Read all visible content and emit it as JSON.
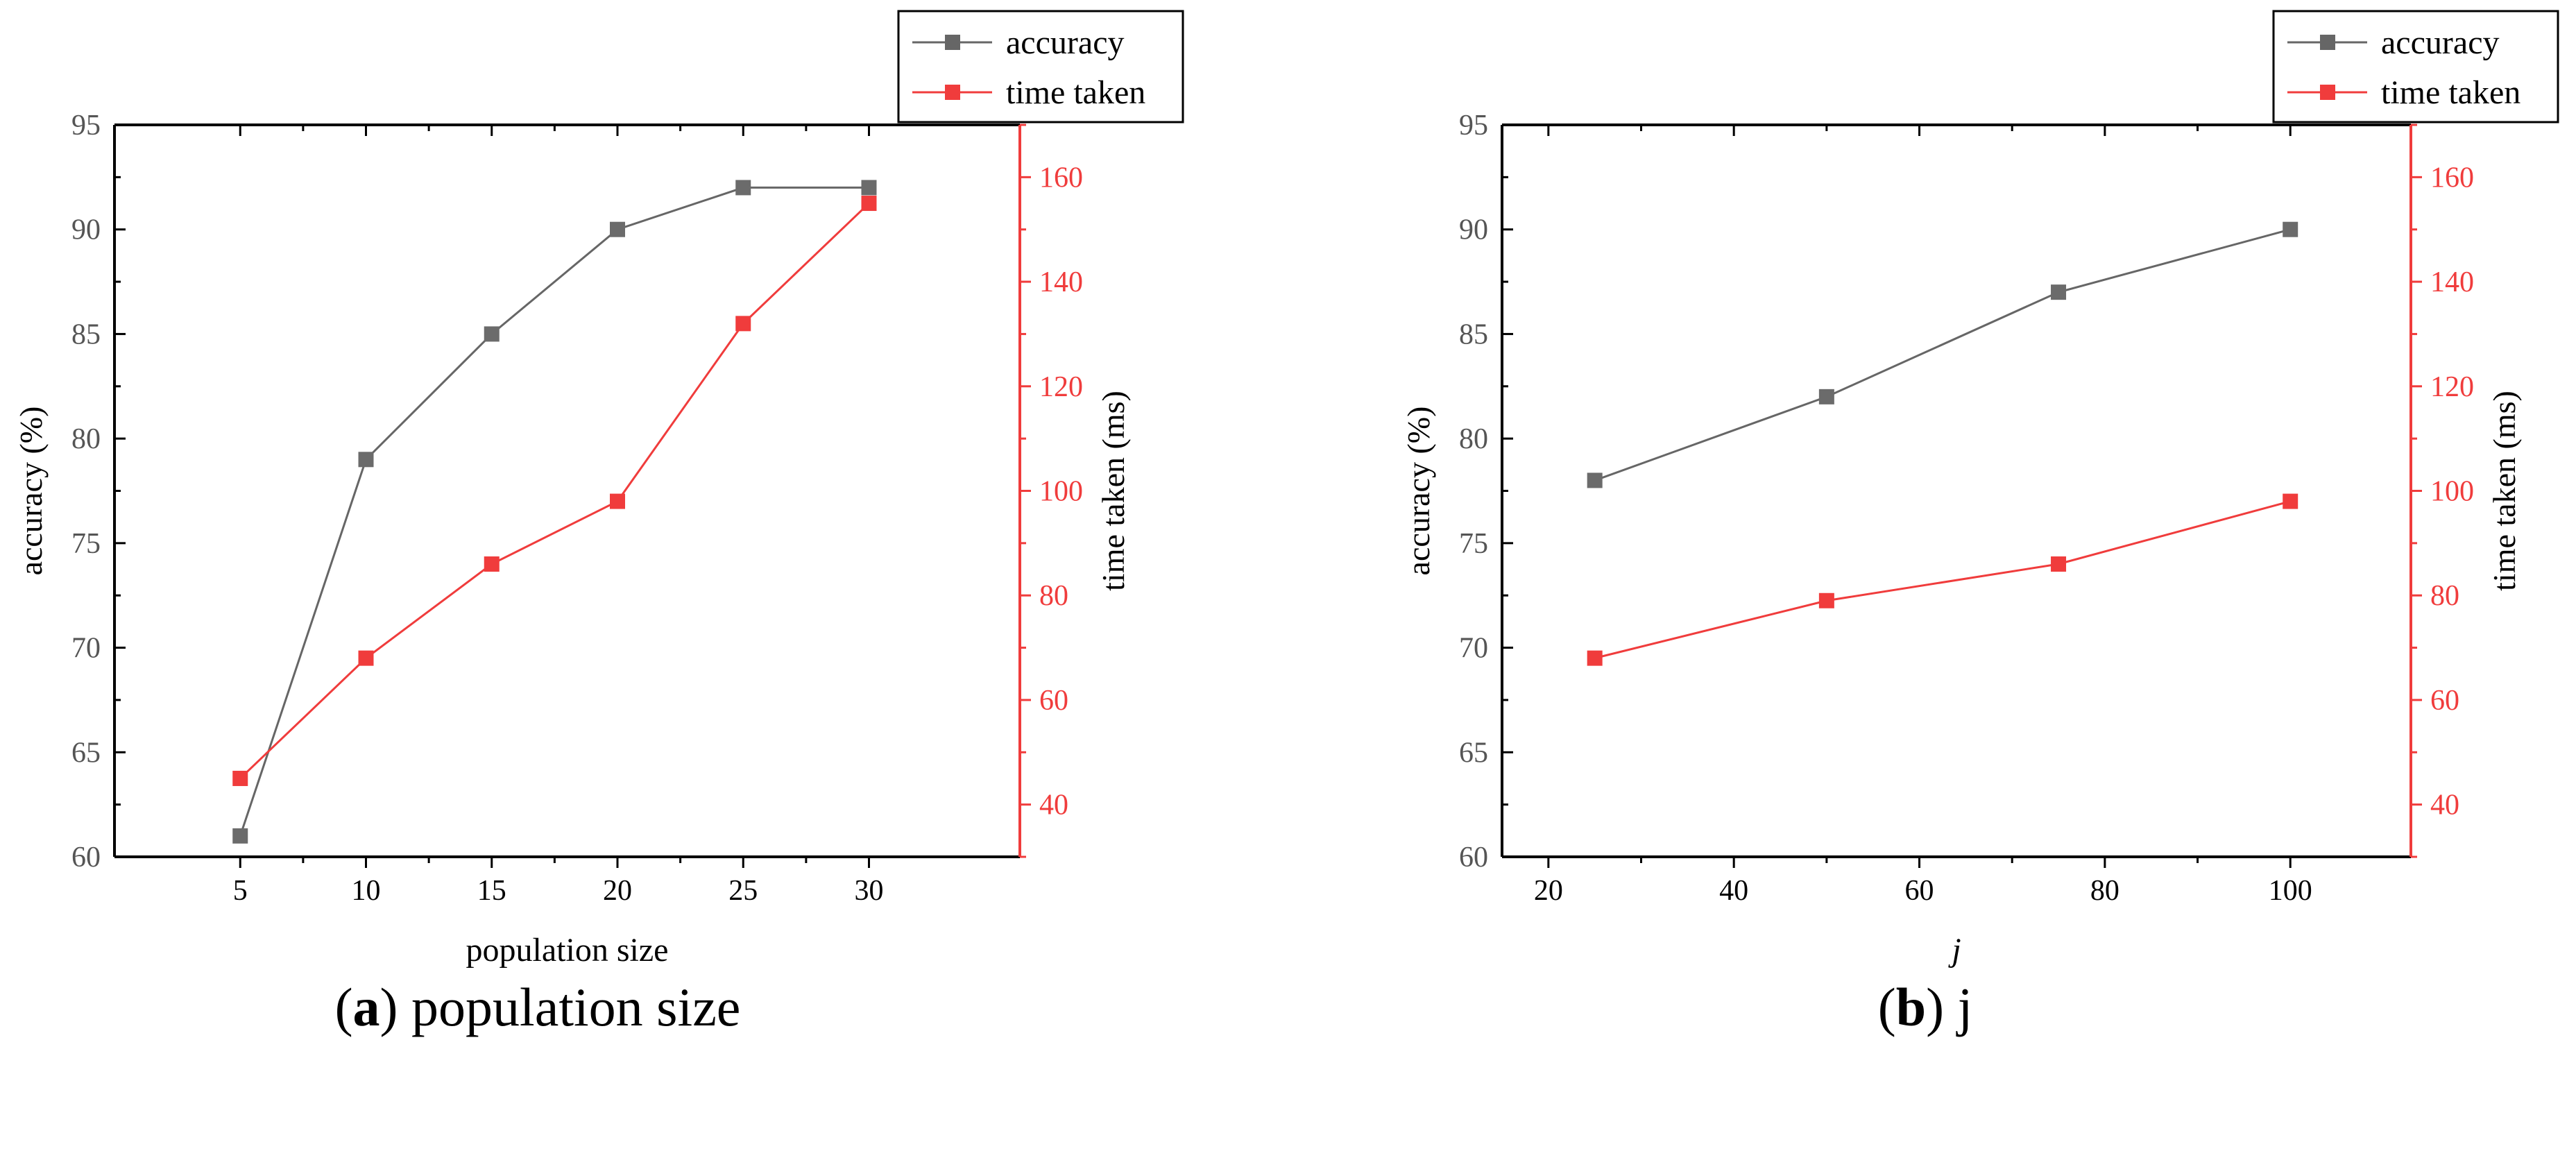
{
  "colors": {
    "accuracy": "#666666",
    "accuracy_marker": "#6b6b6b",
    "time": "#f03c3c",
    "axis": "#000000",
    "tick_gray": "#555555"
  },
  "chart_data": [
    {
      "type": "line",
      "panel_label": "a",
      "caption": "population size",
      "x": [
        5,
        10,
        15,
        20,
        25,
        30
      ],
      "xlim": [
        0,
        36
      ],
      "xticks": [
        5,
        10,
        15,
        20,
        25,
        30
      ],
      "xlabel": "population size",
      "xlabel_italic": false,
      "ylabel": "accuracy (%)",
      "ylim": [
        60,
        95
      ],
      "yticks": [
        60,
        65,
        70,
        75,
        80,
        85,
        90,
        95
      ],
      "y2label": "time taken (ms)",
      "y2lim": [
        30,
        170
      ],
      "y2ticks": [
        40,
        60,
        80,
        100,
        120,
        140,
        160
      ],
      "legend_position": "top-right",
      "series": [
        {
          "name": "accuracy",
          "axis": "left",
          "values": [
            61,
            79,
            85,
            90,
            92,
            92
          ]
        },
        {
          "name": "time taken",
          "axis": "right",
          "values": [
            45,
            68,
            86,
            98,
            132,
            155
          ]
        }
      ]
    },
    {
      "type": "line",
      "panel_label": "b",
      "caption": "j",
      "x": [
        25,
        50,
        75,
        100
      ],
      "xlim": [
        15,
        113
      ],
      "xticks": [
        20,
        40,
        60,
        80,
        100
      ],
      "xlabel": "j",
      "xlabel_italic": true,
      "ylabel": "accuracy (%)",
      "ylim": [
        60,
        95
      ],
      "yticks": [
        60,
        65,
        70,
        75,
        80,
        85,
        90,
        95
      ],
      "y2label": "time taken (ms)",
      "y2lim": [
        30,
        170
      ],
      "y2ticks": [
        40,
        60,
        80,
        100,
        120,
        140,
        160
      ],
      "legend_position": "top-right",
      "series": [
        {
          "name": "accuracy",
          "axis": "left",
          "values": [
            78,
            82,
            87,
            90
          ]
        },
        {
          "name": "time taken",
          "axis": "right",
          "values": [
            68,
            79,
            86,
            98
          ]
        }
      ]
    }
  ]
}
